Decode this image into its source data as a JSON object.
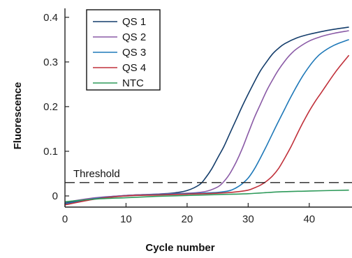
{
  "chart_data": {
    "type": "line",
    "xlabel": "Cycle number",
    "ylabel": "Fluorescence",
    "xlim": [
      0,
      47
    ],
    "ylim": [
      -0.025,
      0.42
    ],
    "xticks": [
      0,
      10,
      20,
      30,
      40
    ],
    "yticks": [
      0,
      0.1,
      0.2,
      0.3,
      0.4
    ],
    "xtick_labels": [
      "0",
      "10",
      "20",
      "30",
      "40"
    ],
    "ytick_labels": [
      "0",
      "0.1",
      "0.2",
      "0.3",
      "0.4"
    ],
    "grid": false,
    "legend_position": "top-left",
    "threshold": {
      "label": "Threshold",
      "value": 0.03
    },
    "series": [
      {
        "name": "QS 1",
        "color": "#143d6b",
        "points": [
          [
            0,
            -0.016
          ],
          [
            5,
            -0.005
          ],
          [
            10,
            0.001
          ],
          [
            15,
            0.004
          ],
          [
            18,
            0.007
          ],
          [
            20,
            0.012
          ],
          [
            22,
            0.025
          ],
          [
            23,
            0.04
          ],
          [
            24,
            0.06
          ],
          [
            25,
            0.085
          ],
          [
            26,
            0.11
          ],
          [
            27,
            0.14
          ],
          [
            28,
            0.17
          ],
          [
            29,
            0.2
          ],
          [
            30,
            0.228
          ],
          [
            31,
            0.255
          ],
          [
            32,
            0.28
          ],
          [
            33,
            0.3
          ],
          [
            34,
            0.318
          ],
          [
            35,
            0.331
          ],
          [
            36,
            0.341
          ],
          [
            38,
            0.354
          ],
          [
            40,
            0.362
          ],
          [
            42,
            0.368
          ],
          [
            44,
            0.373
          ],
          [
            46.5,
            0.378
          ]
        ]
      },
      {
        "name": "QS 2",
        "color": "#8a5aa6",
        "points": [
          [
            0,
            -0.014
          ],
          [
            5,
            -0.004
          ],
          [
            10,
            0.001
          ],
          [
            15,
            0.004
          ],
          [
            20,
            0.006
          ],
          [
            23,
            0.01
          ],
          [
            25,
            0.02
          ],
          [
            26,
            0.032
          ],
          [
            27,
            0.05
          ],
          [
            28,
            0.075
          ],
          [
            29,
            0.105
          ],
          [
            30,
            0.14
          ],
          [
            31,
            0.175
          ],
          [
            32,
            0.205
          ],
          [
            33,
            0.235
          ],
          [
            34,
            0.26
          ],
          [
            35,
            0.283
          ],
          [
            36,
            0.302
          ],
          [
            37,
            0.318
          ],
          [
            38,
            0.33
          ],
          [
            40,
            0.347
          ],
          [
            42,
            0.357
          ],
          [
            44,
            0.364
          ],
          [
            46.5,
            0.37
          ]
        ]
      },
      {
        "name": "QS 3",
        "color": "#1e78b8",
        "points": [
          [
            0,
            -0.018
          ],
          [
            5,
            -0.006
          ],
          [
            10,
            0.0
          ],
          [
            15,
            0.003
          ],
          [
            20,
            0.005
          ],
          [
            25,
            0.008
          ],
          [
            27,
            0.012
          ],
          [
            28,
            0.018
          ],
          [
            29,
            0.027
          ],
          [
            30,
            0.04
          ],
          [
            31,
            0.06
          ],
          [
            32,
            0.085
          ],
          [
            33,
            0.112
          ],
          [
            34,
            0.14
          ],
          [
            35,
            0.168
          ],
          [
            36,
            0.195
          ],
          [
            37,
            0.222
          ],
          [
            38,
            0.247
          ],
          [
            39,
            0.27
          ],
          [
            40,
            0.29
          ],
          [
            41,
            0.307
          ],
          [
            42,
            0.32
          ],
          [
            44,
            0.337
          ],
          [
            46.5,
            0.35
          ]
        ]
      },
      {
        "name": "QS 4",
        "color": "#c0303a",
        "points": [
          [
            0,
            -0.02
          ],
          [
            5,
            -0.007
          ],
          [
            10,
            0.0
          ],
          [
            15,
            0.002
          ],
          [
            20,
            0.004
          ],
          [
            25,
            0.006
          ],
          [
            28,
            0.009
          ],
          [
            30,
            0.013
          ],
          [
            31,
            0.018
          ],
          [
            32,
            0.024
          ],
          [
            33,
            0.033
          ],
          [
            34,
            0.045
          ],
          [
            35,
            0.062
          ],
          [
            36,
            0.085
          ],
          [
            37,
            0.11
          ],
          [
            38,
            0.138
          ],
          [
            39,
            0.165
          ],
          [
            40,
            0.19
          ],
          [
            41,
            0.212
          ],
          [
            42,
            0.232
          ],
          [
            43,
            0.252
          ],
          [
            44,
            0.272
          ],
          [
            45,
            0.29
          ],
          [
            46.5,
            0.315
          ]
        ]
      },
      {
        "name": "NTC",
        "color": "#2e9a5a",
        "points": [
          [
            0,
            -0.013
          ],
          [
            5,
            -0.007
          ],
          [
            10,
            -0.004
          ],
          [
            15,
            -0.001
          ],
          [
            20,
            0.001
          ],
          [
            25,
            0.003
          ],
          [
            30,
            0.005
          ],
          [
            35,
            0.009
          ],
          [
            40,
            0.011
          ],
          [
            46.5,
            0.013
          ]
        ]
      }
    ]
  }
}
